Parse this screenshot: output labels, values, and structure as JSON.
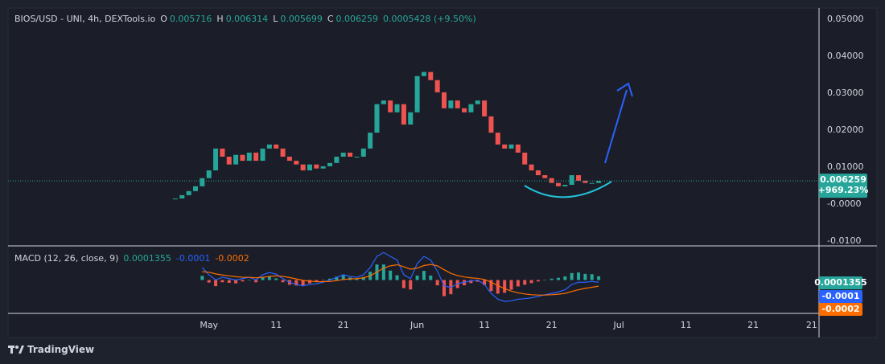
{
  "chart_data": [
    {
      "type": "candlestick",
      "title": "BIOS/USD - UNI, 4h, DEXTools.io",
      "ohlc": [
        {
          "label": "O",
          "value": "0.005716"
        },
        {
          "label": "H",
          "value": "0.006314"
        },
        {
          "label": "L",
          "value": "0.005699"
        },
        {
          "label": "C",
          "value": "0.006259"
        }
      ],
      "change": "0.0005428 (+9.50%)",
      "x": [
        -5,
        -4,
        -3,
        -2,
        -1,
        0,
        1,
        2,
        3,
        4,
        5,
        6,
        7,
        8,
        9,
        10,
        11,
        12,
        13,
        14,
        15,
        16,
        17,
        18,
        19,
        20,
        21,
        22,
        23,
        24,
        25,
        26,
        27,
        28,
        29,
        30,
        31,
        32,
        33,
        34,
        35,
        36,
        37,
        38,
        39,
        40,
        41,
        42,
        43,
        44,
        45,
        46,
        47,
        48,
        49,
        50,
        51,
        52,
        53,
        54,
        55,
        56,
        57,
        58
      ],
      "values": [
        0.0015,
        0.0024,
        0.0035,
        0.0048,
        0.007,
        0.0091,
        0.015,
        0.0128,
        0.0107,
        0.0133,
        0.0117,
        0.0139,
        0.0117,
        0.015,
        0.0161,
        0.015,
        0.0128,
        0.0117,
        0.0107,
        0.0091,
        0.0107,
        0.0096,
        0.0102,
        0.0111,
        0.0128,
        0.0139,
        0.0128,
        0.0128,
        0.015,
        0.0193,
        0.027,
        0.028,
        0.0248,
        0.027,
        0.0215,
        0.0248,
        0.0346,
        0.0357,
        0.0335,
        0.0302,
        0.0259,
        0.028,
        0.0259,
        0.0248,
        0.027,
        0.028,
        0.0237,
        0.0193,
        0.0161,
        0.015,
        0.0161,
        0.0139,
        0.0107,
        0.0091,
        0.0078,
        0.007,
        0.0057,
        0.0048,
        0.0052,
        0.0078,
        0.0063,
        0.0057,
        0.0057,
        0.006259
      ],
      "up_color": "#26a69a",
      "down_color": "#ef5350",
      "last_price_label": "0.006259",
      "last_change_label": "+969.23%",
      "xlim": [
        -29.9,
        90.8
      ],
      "xticks": [
        {
          "value": 0,
          "label": "May"
        },
        {
          "value": 10,
          "label": "11"
        },
        {
          "value": 20,
          "label": "21"
        },
        {
          "value": 31,
          "label": "Jun"
        },
        {
          "value": 41,
          "label": "11"
        },
        {
          "value": 51,
          "label": "21"
        },
        {
          "value": 61,
          "label": "Jul"
        },
        {
          "value": 71,
          "label": "11"
        },
        {
          "value": 81,
          "label": "21"
        },
        {
          "value": 89.7,
          "label": "21"
        }
      ],
      "ylim": [
        -0.0111,
        0.053
      ],
      "yticks": [
        {
          "value": 0.05,
          "label": "0.05000"
        },
        {
          "value": 0.04,
          "label": "0.04000"
        },
        {
          "value": 0.03,
          "label": "0.03000"
        },
        {
          "value": 0.02,
          "label": "0.02000"
        },
        {
          "value": 0.01,
          "label": "0.01000"
        },
        {
          "value": 0,
          "label": "-0.0000"
        },
        {
          "value": -0.01,
          "label": "-0.0100"
        }
      ],
      "grid": true
    },
    {
      "type": "macd",
      "title": "MACD (12, 26, close, 9)",
      "x": [
        -5,
        -4,
        -3,
        -2,
        -1,
        0,
        1,
        2,
        3,
        4,
        5,
        6,
        7,
        8,
        9,
        10,
        11,
        12,
        13,
        14,
        15,
        16,
        17,
        18,
        19,
        20,
        21,
        22,
        23,
        24,
        25,
        26,
        27,
        28,
        29,
        30,
        31,
        32,
        33,
        34,
        35,
        36,
        37,
        38,
        39,
        40,
        41,
        42,
        43,
        44,
        45,
        46,
        47,
        48,
        49,
        50,
        51,
        52,
        53,
        54,
        55,
        56,
        57,
        58
      ],
      "ylim": [
        -0.0012,
        0.0012
      ],
      "histogram": {
        "positive_color": "#26a69a",
        "negative_color": "#ef5350",
        "last_label": "0.0001355",
        "values": [
          null,
          null,
          null,
          null,
          0.00015,
          -9e-05,
          -0.00022,
          -8e-05,
          -0.0001,
          -0.00012,
          -5e-05,
          0,
          -8e-05,
          9e-05,
          0.00014,
          6e-05,
          -8e-05,
          -0.00017,
          -0.0002,
          -0.0002,
          -0.00012,
          -7e-05,
          -2e-05,
          5e-05,
          0.00012,
          0.00017,
          9e-05,
          5e-05,
          0.00011,
          0.0003,
          0.00056,
          0.00056,
          0.00034,
          0.00017,
          -0.00029,
          -0.00034,
          0.00016,
          0.00033,
          0.00016,
          -0.00019,
          -0.00058,
          -0.00051,
          -0.00029,
          -0.00019,
          -0.00011,
          -6e-05,
          -0.00018,
          -0.0004,
          -0.00049,
          -0.00046,
          -0.00035,
          -0.00023,
          -0.00017,
          -0.00011,
          -5e-05,
          1e-05,
          5e-05,
          8e-05,
          0.00013,
          0.00025,
          0.00027,
          0.00022,
          0.00021,
          0.0001355
        ]
      },
      "macd": {
        "color": "#2962ff",
        "last_label": "-0.0001",
        "values": [
          null,
          null,
          null,
          null,
          0.00045,
          0.00019,
          0,
          0.0001,
          5e-05,
          0,
          5e-05,
          0.0001,
          0,
          0.00019,
          0.00027,
          0.00021,
          5e-05,
          -8e-05,
          -0.00016,
          -0.00021,
          -0.00016,
          -0.00013,
          -8e-05,
          0,
          0.0001,
          0.00019,
          0.00013,
          0.0001,
          0.00019,
          0.00045,
          0.00085,
          0.00099,
          0.00085,
          0.00072,
          0.00019,
          5e-05,
          0.00059,
          0.00085,
          0.00072,
          0.00032,
          -0.00021,
          -0.00027,
          -0.00013,
          -8e-05,
          -3e-05,
          0,
          -0.00016,
          -0.00048,
          -0.00069,
          -0.00077,
          -0.00075,
          -0.00069,
          -0.00067,
          -0.00064,
          -0.00059,
          -0.00053,
          -0.00048,
          -0.00043,
          -0.00035,
          -0.00016,
          -8e-05,
          -8e-05,
          -5e-05,
          -8e-05
        ]
      },
      "signal": {
        "color": "#ff6d00",
        "last_label": "-0.0002",
        "values": [
          null,
          null,
          null,
          null,
          0.0003,
          0.00028,
          0.00022,
          0.00018,
          0.00015,
          0.00012,
          0.0001,
          0.0001,
          8e-05,
          0.0001,
          0.00013,
          0.00015,
          0.00013,
          9e-05,
          4e-05,
          -1e-05,
          -4e-05,
          -6e-05,
          -6e-05,
          -5e-05,
          -2e-05,
          2e-05,
          4e-05,
          5e-05,
          8e-05,
          0.00015,
          0.00029,
          0.00043,
          0.00051,
          0.00055,
          0.00048,
          0.00039,
          0.00043,
          0.00052,
          0.00056,
          0.00051,
          0.00037,
          0.00024,
          0.00016,
          0.00011,
          8e-05,
          6e-05,
          2e-05,
          -8e-05,
          -0.0002,
          -0.00031,
          -0.0004,
          -0.00046,
          -0.0005,
          -0.00053,
          -0.00054,
          -0.00054,
          -0.00053,
          -0.00051,
          -0.00048,
          -0.00041,
          -0.00035,
          -0.0003,
          -0.00026,
          -0.00022
        ]
      }
    }
  ],
  "footer": {
    "brand": "TradingView"
  }
}
